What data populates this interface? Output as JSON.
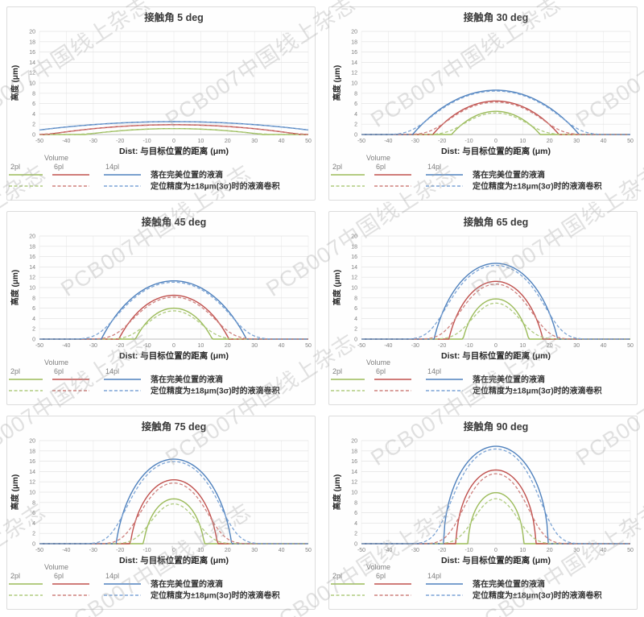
{
  "watermark": {
    "text": "PCB007中国线上杂志"
  },
  "legend": {
    "header": "Volume",
    "solid_label": "落在完美位置的液滴",
    "dashed_label": "定位精度为±18μm(3σ)时的液滴卷积",
    "positioning_accuracy": "±18μm(3σ)",
    "items": [
      "2pl",
      "6pl",
      "14pl"
    ]
  },
  "colors": {
    "solid": {
      "2pl": "#9BBB59",
      "6pl": "#C0504D",
      "14pl": "#4F81BD"
    },
    "dashed": {
      "2pl": "#AFCB7F",
      "6pl": "#CE807D",
      "14pl": "#7CA4D5"
    },
    "grid_h": "#e3e3e3",
    "grid_v": "#ececec",
    "axis": "#bfbfbf",
    "tick_text": "#7f7f7f",
    "title_text": "#3b3b3b"
  },
  "chart_data": [
    {
      "type": "line",
      "title": "接触角 5 deg",
      "contact_angle_deg": 5,
      "xlabel": "Dist: 与目标位置的距离 (μm)",
      "ylabel": "高度 (μm)",
      "xlim": [
        -50,
        50
      ],
      "ylim": [
        0,
        20
      ],
      "xticks": [
        -50,
        -40,
        -30,
        -20,
        -10,
        0,
        10,
        20,
        30,
        40,
        50
      ],
      "yticks": [
        0,
        2,
        4,
        6,
        8,
        10,
        12,
        14,
        16,
        18,
        20
      ],
      "grid": true,
      "profile_model": "spherical-cap",
      "series": [
        {
          "name": "2pl",
          "peak_height_um": 1.15,
          "base_half_width_um": 33
        },
        {
          "name": "6pl",
          "peak_height_um": 1.9,
          "base_half_width_um": 47
        },
        {
          "name": "14pl",
          "peak_height_um": 2.5,
          "base_half_width_um": 62
        }
      ]
    },
    {
      "type": "line",
      "title": "接触角 30 deg",
      "contact_angle_deg": 30,
      "xlabel": "Dist: 与目标位置的距离 (μm)",
      "ylabel": "高度 (μm)",
      "xlim": [
        -50,
        50
      ],
      "ylim": [
        0,
        20
      ],
      "xticks": [
        -50,
        -40,
        -30,
        -20,
        -10,
        0,
        10,
        20,
        30,
        40,
        50
      ],
      "yticks": [
        0,
        2,
        4,
        6,
        8,
        10,
        12,
        14,
        16,
        18,
        20
      ],
      "grid": true,
      "profile_model": "spherical-cap",
      "series": [
        {
          "name": "2pl",
          "peak_height_um": 4.5,
          "base_half_width_um": 16.5
        },
        {
          "name": "6pl",
          "peak_height_um": 6.5,
          "base_half_width_um": 23.5
        },
        {
          "name": "14pl",
          "peak_height_um": 8.6,
          "base_half_width_um": 31
        }
      ]
    },
    {
      "type": "line",
      "title": "接触角 45 deg",
      "contact_angle_deg": 45,
      "xlabel": "Dist: 与目标位置的距离 (μm)",
      "ylabel": "高度 (μm)",
      "xlim": [
        -50,
        50
      ],
      "ylim": [
        0,
        20
      ],
      "xticks": [
        -50,
        -40,
        -30,
        -20,
        -10,
        0,
        10,
        20,
        30,
        40,
        50
      ],
      "yticks": [
        0,
        2,
        4,
        6,
        8,
        10,
        12,
        14,
        16,
        18,
        20
      ],
      "grid": true,
      "profile_model": "spherical-cap",
      "series": [
        {
          "name": "2pl",
          "peak_height_um": 6.0,
          "base_half_width_um": 14.3
        },
        {
          "name": "6pl",
          "peak_height_um": 8.5,
          "base_half_width_um": 20.5
        },
        {
          "name": "14pl",
          "peak_height_um": 11.3,
          "base_half_width_um": 27
        }
      ]
    },
    {
      "type": "line",
      "title": "接触角 65 deg",
      "contact_angle_deg": 65,
      "xlabel": "Dist: 与目标位置的距离 (μm)",
      "ylabel": "高度 (μm)",
      "xlim": [
        -50,
        50
      ],
      "ylim": [
        0,
        20
      ],
      "xticks": [
        -50,
        -40,
        -30,
        -20,
        -10,
        0,
        10,
        20,
        30,
        40,
        50
      ],
      "yticks": [
        0,
        2,
        4,
        6,
        8,
        10,
        12,
        14,
        16,
        18,
        20
      ],
      "grid": true,
      "profile_model": "spherical-cap",
      "series": [
        {
          "name": "2pl",
          "peak_height_um": 7.8,
          "base_half_width_um": 12.2
        },
        {
          "name": "6pl",
          "peak_height_um": 11.2,
          "base_half_width_um": 17.5
        },
        {
          "name": "14pl",
          "peak_height_um": 14.7,
          "base_half_width_um": 23
        }
      ]
    },
    {
      "type": "line",
      "title": "接触角 75 deg",
      "contact_angle_deg": 75,
      "xlabel": "Dist: 与目标位置的距离 (μm)",
      "ylabel": "高度 (μm)",
      "xlim": [
        -50,
        50
      ],
      "ylim": [
        0,
        20
      ],
      "xticks": [
        -50,
        -40,
        -30,
        -20,
        -10,
        0,
        10,
        20,
        30,
        40,
        50
      ],
      "yticks": [
        0,
        2,
        4,
        6,
        8,
        10,
        12,
        14,
        16,
        18,
        20
      ],
      "grid": true,
      "profile_model": "spherical-cap",
      "series": [
        {
          "name": "2pl",
          "peak_height_um": 8.7,
          "base_half_width_um": 11.3
        },
        {
          "name": "6pl",
          "peak_height_um": 12.4,
          "base_half_width_um": 16.2
        },
        {
          "name": "14pl",
          "peak_height_um": 16.4,
          "base_half_width_um": 21.5
        }
      ]
    },
    {
      "type": "line",
      "title": "接触角 90 deg",
      "contact_angle_deg": 90,
      "xlabel": "Dist: 与目标位置的距离 (μm)",
      "ylabel": "高度 (μm)",
      "xlim": [
        -50,
        50
      ],
      "ylim": [
        0,
        20
      ],
      "xticks": [
        -50,
        -40,
        -30,
        -20,
        -10,
        0,
        10,
        20,
        30,
        40,
        50
      ],
      "yticks": [
        0,
        2,
        4,
        6,
        8,
        10,
        12,
        14,
        16,
        18,
        20
      ],
      "grid": true,
      "profile_model": "spherical-cap",
      "series": [
        {
          "name": "2pl",
          "peak_height_um": 9.9,
          "base_half_width_um": 10.3
        },
        {
          "name": "6pl",
          "peak_height_um": 14.3,
          "base_half_width_um": 14.8
        },
        {
          "name": "14pl",
          "peak_height_um": 18.9,
          "base_half_width_um": 19.5
        }
      ]
    }
  ]
}
